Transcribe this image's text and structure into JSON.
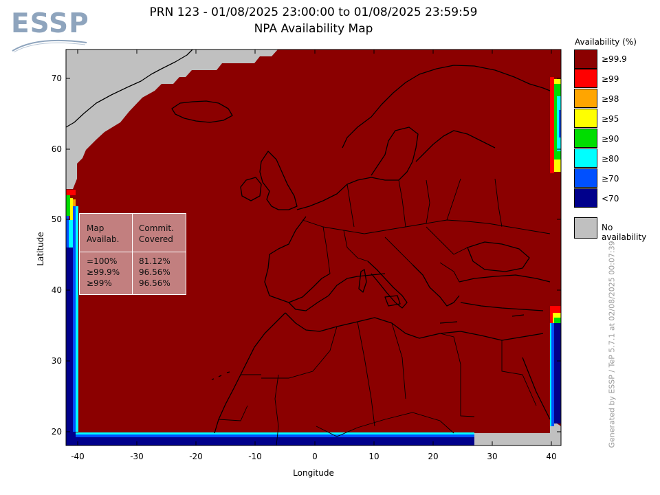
{
  "logo": {
    "text": "ESSP"
  },
  "title": {
    "line1": "PRN 123 - 01/08/2025 23:00:00 to 01/08/2025 23:59:59",
    "line2": "NPA Availability Map"
  },
  "axes": {
    "xlabel": "Longitude",
    "ylabel": "Latitude",
    "xticks": [
      "-40",
      "-30",
      "-20",
      "-10",
      "0",
      "10",
      "20",
      "30",
      "40"
    ],
    "yticks": [
      "70",
      "60",
      "50",
      "40",
      "30",
      "20"
    ]
  },
  "stats_box": {
    "col1_header_line1": "Map",
    "col1_header_line2": "Availab.",
    "col2_header_line1": "Commit.",
    "col2_header_line2": "Covered",
    "rows": [
      {
        "map": "=100%",
        "covered": "81.12%"
      },
      {
        "map": "≥99.9%",
        "covered": "96.56%"
      },
      {
        "map": "≥99%",
        "covered": "96.56%"
      }
    ]
  },
  "legend": {
    "title": "Availability (%)",
    "items": [
      {
        "label": "≥99.9",
        "color": "#8b0000"
      },
      {
        "label": "≥99",
        "color": "#ff0000"
      },
      {
        "label": "≥98",
        "color": "#ffa500"
      },
      {
        "label": "≥95",
        "color": "#ffff00"
      },
      {
        "label": "≥90",
        "color": "#00dd00"
      },
      {
        "label": "≥80",
        "color": "#00ffff"
      },
      {
        "label": "≥70",
        "color": "#0050ff"
      },
      {
        "label": "<70",
        "color": "#00008b"
      }
    ],
    "no_data": {
      "label": "No availability",
      "color": "#c0c0c0"
    }
  },
  "credit": "Generated by ESSP / TeP 5.7.1 at 02/08/2025 00:07:39",
  "colors": {
    "available": "#8b0000",
    "no_availability": "#c0c0c0",
    "edge_blue": "#00008b"
  }
}
